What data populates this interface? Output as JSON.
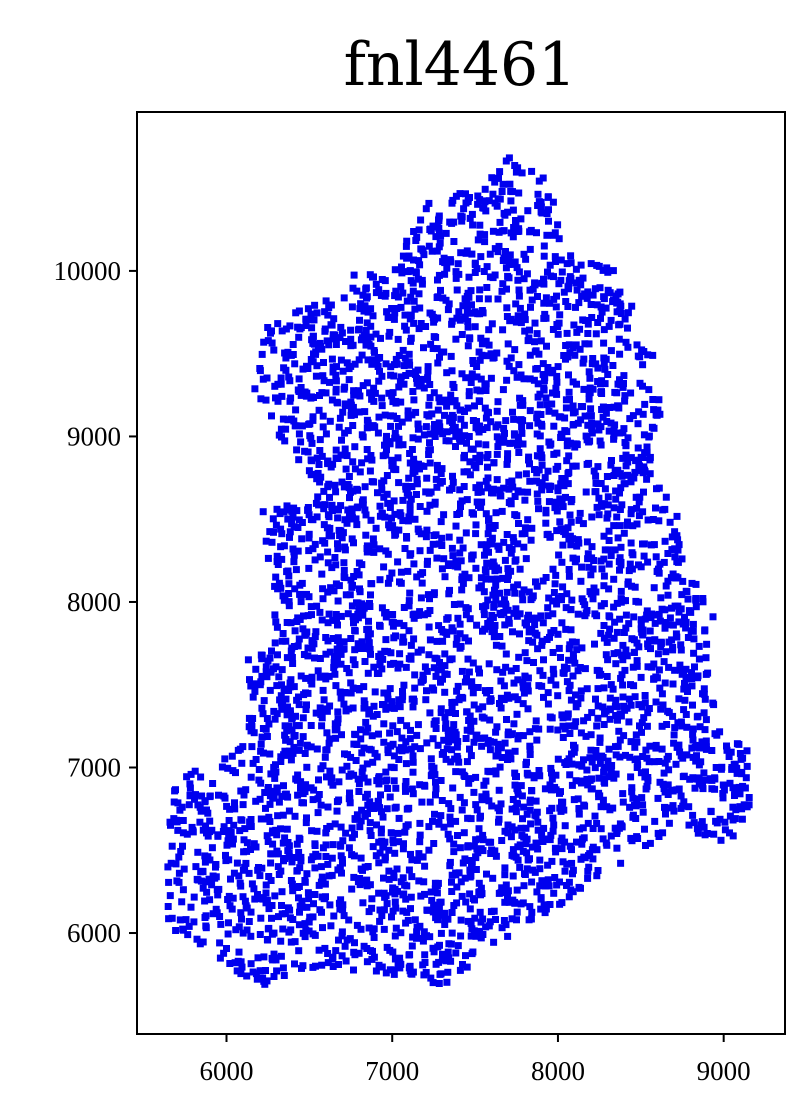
{
  "chart_data": {
    "type": "scatter",
    "title": "fnl4461",
    "xlabel": "",
    "ylabel": "",
    "xlim": [
      5460,
      9370
    ],
    "ylim": [
      5390,
      10960
    ],
    "x_ticks": [
      6000,
      7000,
      8000,
      9000
    ],
    "y_ticks": [
      6000,
      7000,
      8000,
      9000,
      10000
    ],
    "x_tick_labels": [
      "6000",
      "7000",
      "8000",
      "9000"
    ],
    "y_tick_labels": [
      "6000",
      "7000",
      "8000",
      "9000",
      "10000"
    ],
    "marker": "square",
    "grid": false,
    "legend": "none",
    "point_count": 4461,
    "outline": [
      [
        5640,
        6100
      ],
      [
        5650,
        6950
      ],
      [
        5900,
        7000
      ],
      [
        6050,
        7100
      ],
      [
        6130,
        7150
      ],
      [
        6100,
        7650
      ],
      [
        6250,
        7700
      ],
      [
        6300,
        8000
      ],
      [
        6200,
        8550
      ],
      [
        6600,
        8650
      ],
      [
        6400,
        8900
      ],
      [
        6150,
        9200
      ],
      [
        6250,
        9700
      ],
      [
        6600,
        9850
      ],
      [
        6800,
        10000
      ],
      [
        7050,
        10050
      ],
      [
        7100,
        10250
      ],
      [
        7250,
        10450
      ],
      [
        7550,
        10500
      ],
      [
        7700,
        10700
      ],
      [
        7950,
        10550
      ],
      [
        8050,
        10100
      ],
      [
        8350,
        10000
      ],
      [
        8450,
        9850
      ],
      [
        8450,
        9700
      ],
      [
        8600,
        9450
      ],
      [
        8620,
        9150
      ],
      [
        8550,
        8800
      ],
      [
        8750,
        8500
      ],
      [
        8820,
        8200
      ],
      [
        8950,
        7900
      ],
      [
        8900,
        7600
      ],
      [
        8950,
        7350
      ],
      [
        9030,
        7100
      ],
      [
        9150,
        7200
      ],
      [
        9180,
        6900
      ],
      [
        9120,
        6600
      ],
      [
        8950,
        6550
      ],
      [
        8750,
        6650
      ],
      [
        8520,
        6500
      ],
      [
        8250,
        6350
      ],
      [
        8050,
        6200
      ],
      [
        7900,
        6100
      ],
      [
        7650,
        5950
      ],
      [
        7500,
        5850
      ],
      [
        7380,
        5650
      ],
      [
        7000,
        5750
      ],
      [
        6550,
        5800
      ],
      [
        6200,
        5650
      ],
      [
        6000,
        5800
      ],
      [
        5800,
        5950
      ],
      [
        5680,
        6000
      ]
    ],
    "holes": [
      [
        7300,
        8900,
        60
      ],
      [
        7750,
        9300,
        55
      ],
      [
        8150,
        8900,
        55
      ],
      [
        7900,
        8300,
        95
      ],
      [
        7250,
        8150,
        65
      ],
      [
        7550,
        7700,
        55
      ],
      [
        8200,
        7650,
        55
      ],
      [
        7050,
        6950,
        45
      ],
      [
        8000,
        7100,
        50
      ],
      [
        7600,
        6700,
        45
      ],
      [
        7400,
        9450,
        50
      ]
    ],
    "colors": {
      "points": "#0000ee",
      "axes": "#000000",
      "background": "#ffffff"
    }
  }
}
